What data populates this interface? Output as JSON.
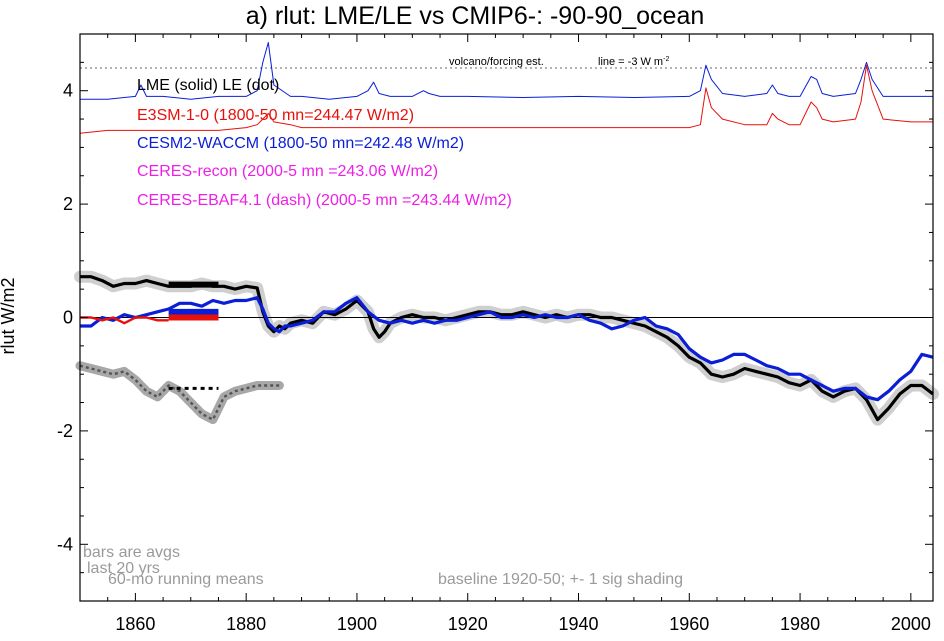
{
  "chart_data": {
    "type": "line",
    "title": "a) rlut: LME/LE vs CMIP6-: -90-90_ocean",
    "ylabel": "rlut W/m2",
    "xlabel": "",
    "xlim": [
      1850,
      2004
    ],
    "ylim": [
      -5,
      5
    ],
    "x_ticks": [
      1860,
      1880,
      1900,
      1920,
      1940,
      1960,
      1980,
      2000
    ],
    "x_tick_labels": [
      "1860",
      "1880",
      "1900",
      "1920",
      "1940",
      "1960",
      "1980",
      "2000"
    ],
    "y_ticks": [
      -4,
      -2,
      0,
      2,
      4
    ],
    "y_tick_labels": [
      "-4",
      "-2",
      "0",
      "2",
      "4"
    ],
    "legend": [
      {
        "text": "LME (solid)   LE (dot)",
        "color": "#000000"
      },
      {
        "text": "E3SM-1-0 (1800-50 mn=244.47 W/m2)",
        "color": "#e8100a"
      },
      {
        "text": "CESM2-WACCM (1800-50 mn=242.48 W/m2)",
        "color": "#0a1ed8"
      },
      {
        "text": "CERES-recon (2000-5 mn =243.06 W/m2)",
        "color": "#ee1fe6"
      },
      {
        "text": "CERES-EBAF4.1 (dash) (2000-5 mn =243.44 W/m2)",
        "color": "#ee1fe6"
      }
    ],
    "annotations": {
      "volcano": "volcano/forcing est.",
      "line": "line = -3 W m",
      "line_sup": "-2",
      "bars1": "bars are avgs",
      "bars2": "last 20 yrs",
      "running": "60-mo running means",
      "baseline": "baseline 1920-50; +- 1 sig shading"
    },
    "reference_lines": [
      {
        "name": "zero",
        "y": 0,
        "style": "solid"
      },
      {
        "name": "volcano-threshold",
        "y": 4.4,
        "style": "dotted"
      }
    ],
    "colors": {
      "lme": "#000000",
      "le": "#555555",
      "e3sm": "#e8100a",
      "cesm": "#0a1ed8",
      "shading": "#cfcfcf",
      "le_shading": "#a8a8a8",
      "axis": "#000000",
      "annotation_gray": "#9a9a9a"
    },
    "series": [
      {
        "name": "LME (solid)",
        "color": "#000000",
        "x": [
          1850,
          1852,
          1854,
          1856,
          1858,
          1860,
          1862,
          1864,
          1866,
          1868,
          1870,
          1872,
          1874,
          1876,
          1878,
          1880,
          1882,
          1883,
          1884,
          1885,
          1886,
          1887,
          1888,
          1890,
          1892,
          1894,
          1896,
          1898,
          1900,
          1902,
          1903,
          1904,
          1905,
          1906,
          1908,
          1910,
          1912,
          1914,
          1916,
          1918,
          1920,
          1922,
          1924,
          1926,
          1928,
          1930,
          1932,
          1934,
          1936,
          1938,
          1940,
          1942,
          1944,
          1946,
          1948,
          1950,
          1952,
          1954,
          1956,
          1958,
          1960,
          1962,
          1964,
          1966,
          1968,
          1970,
          1972,
          1974,
          1976,
          1978,
          1980,
          1982,
          1984,
          1986,
          1988,
          1990,
          1992,
          1994,
          1996,
          1998,
          2000,
          2002,
          2004
        ],
        "y": [
          0.72,
          0.72,
          0.65,
          0.55,
          0.6,
          0.6,
          0.65,
          0.6,
          0.55,
          0.55,
          0.55,
          0.6,
          0.55,
          0.55,
          0.5,
          0.55,
          0.52,
          0.1,
          -0.15,
          -0.25,
          -0.15,
          -0.2,
          -0.1,
          -0.05,
          -0.1,
          0.1,
          0.05,
          0.15,
          0.3,
          0.1,
          -0.2,
          -0.35,
          -0.25,
          -0.1,
          0.0,
          0.05,
          0.0,
          0.0,
          -0.05,
          0.0,
          0.05,
          0.1,
          0.1,
          0.05,
          0.05,
          0.1,
          0.05,
          0.0,
          0.05,
          0.0,
          0.05,
          0.05,
          0.0,
          0.0,
          -0.05,
          -0.1,
          -0.15,
          -0.25,
          -0.35,
          -0.5,
          -0.7,
          -0.8,
          -1.0,
          -1.05,
          -1.0,
          -0.9,
          -0.95,
          -1.0,
          -1.05,
          -1.15,
          -1.2,
          -1.1,
          -1.3,
          -1.4,
          -1.3,
          -1.25,
          -1.45,
          -1.8,
          -1.6,
          -1.35,
          -1.2,
          -1.2,
          -1.35
        ]
      },
      {
        "name": "CESM2-WACCM",
        "color": "#0a1ed8",
        "x": [
          1850,
          1852,
          1854,
          1856,
          1858,
          1860,
          1862,
          1864,
          1866,
          1868,
          1870,
          1872,
          1874,
          1876,
          1878,
          1880,
          1882,
          1883,
          1884,
          1885,
          1886,
          1887,
          1888,
          1890,
          1892,
          1894,
          1896,
          1898,
          1900,
          1902,
          1904,
          1906,
          1908,
          1910,
          1912,
          1914,
          1916,
          1918,
          1920,
          1922,
          1924,
          1926,
          1928,
          1930,
          1932,
          1934,
          1936,
          1938,
          1940,
          1942,
          1944,
          1946,
          1948,
          1950,
          1952,
          1954,
          1956,
          1958,
          1960,
          1962,
          1964,
          1966,
          1968,
          1970,
          1972,
          1974,
          1976,
          1978,
          1980,
          1982,
          1984,
          1986,
          1988,
          1990,
          1992,
          1994,
          1996,
          1998,
          2000,
          2002,
          2004
        ],
        "y": [
          -0.15,
          -0.15,
          0.0,
          -0.05,
          0.05,
          0.0,
          0.05,
          0.1,
          0.15,
          0.25,
          0.25,
          0.2,
          0.3,
          0.25,
          0.3,
          0.3,
          0.35,
          0.15,
          -0.1,
          -0.2,
          -0.25,
          -0.15,
          -0.15,
          -0.1,
          -0.05,
          0.1,
          0.1,
          0.25,
          0.35,
          0.1,
          -0.05,
          -0.1,
          -0.05,
          -0.1,
          -0.05,
          -0.1,
          -0.05,
          -0.05,
          0.0,
          0.05,
          0.1,
          0.0,
          0.0,
          0.05,
          0.0,
          0.05,
          0.0,
          0.0,
          0.05,
          -0.05,
          -0.1,
          -0.2,
          -0.15,
          -0.05,
          0.0,
          -0.15,
          -0.2,
          -0.3,
          -0.55,
          -0.7,
          -0.8,
          -0.75,
          -0.65,
          -0.65,
          -0.75,
          -0.85,
          -0.9,
          -1.0,
          -1.0,
          -1.1,
          -1.2,
          -1.3,
          -1.25,
          -1.25,
          -1.4,
          -1.45,
          -1.3,
          -1.1,
          -0.95,
          -0.65,
          -0.7
        ]
      },
      {
        "name": "E3SM-1-0",
        "color": "#e8100a",
        "x": [
          1850,
          1852,
          1854,
          1856,
          1858,
          1860,
          1862,
          1864,
          1866
        ],
        "y": [
          0.0,
          0.0,
          -0.05,
          0.0,
          -0.1,
          0.0,
          0.0,
          -0.05,
          -0.05
        ]
      },
      {
        "name": "LE (dot)",
        "color": "#555555",
        "x": [
          1850,
          1852,
          1854,
          1856,
          1858,
          1860,
          1862,
          1864,
          1866,
          1868,
          1870,
          1872,
          1874,
          1876,
          1878,
          1880,
          1882,
          1884,
          1886
        ],
        "y": [
          -0.85,
          -0.9,
          -0.95,
          -1.0,
          -0.95,
          -1.1,
          -1.3,
          -1.4,
          -1.2,
          -1.3,
          -1.5,
          -1.7,
          -1.8,
          -1.4,
          -1.3,
          -1.25,
          -1.2,
          -1.2,
          -1.2
        ]
      },
      {
        "name": "LME volcano/forcing est.",
        "color": "#0a1ed8",
        "x": [
          1850,
          1855,
          1860,
          1861,
          1862,
          1865,
          1870,
          1875,
          1880,
          1882,
          1883,
          1884,
          1885,
          1888,
          1890,
          1895,
          1900,
          1902,
          1903,
          1904,
          1906,
          1910,
          1912,
          1913,
          1915,
          1920,
          1930,
          1940,
          1950,
          1960,
          1962,
          1963,
          1964,
          1966,
          1970,
          1974,
          1975,
          1976,
          1978,
          1980,
          1982,
          1983,
          1984,
          1986,
          1990,
          1991,
          1992,
          1993,
          1995,
          2000,
          2004
        ],
        "y": [
          3.85,
          3.85,
          3.9,
          4.1,
          3.9,
          3.9,
          3.85,
          3.9,
          3.9,
          4.0,
          4.5,
          4.85,
          4.1,
          3.9,
          3.9,
          3.85,
          3.9,
          4.0,
          4.15,
          3.95,
          3.9,
          3.9,
          4.0,
          3.95,
          3.9,
          3.9,
          3.88,
          3.9,
          3.88,
          3.9,
          4.0,
          4.45,
          4.2,
          3.95,
          3.9,
          3.95,
          4.1,
          3.95,
          3.9,
          3.9,
          4.25,
          4.2,
          3.95,
          3.9,
          3.95,
          4.2,
          4.5,
          4.2,
          3.9,
          3.9,
          3.9
        ]
      },
      {
        "name": "CMIP6 volcano/forcing est.",
        "color": "#e8100a",
        "x": [
          1850,
          1855,
          1860,
          1865,
          1870,
          1875,
          1880,
          1882,
          1883,
          1884,
          1885,
          1888,
          1890,
          1895,
          1900,
          1910,
          1920,
          1930,
          1940,
          1950,
          1960,
          1962,
          1963,
          1964,
          1966,
          1970,
          1974,
          1975,
          1976,
          1978,
          1980,
          1982,
          1983,
          1984,
          1986,
          1990,
          1991,
          1992,
          1993,
          1995,
          2000,
          2004
        ],
        "y": [
          3.25,
          3.3,
          3.3,
          3.3,
          3.3,
          3.3,
          3.35,
          3.4,
          3.5,
          3.6,
          3.45,
          3.4,
          3.35,
          3.35,
          3.35,
          3.35,
          3.35,
          3.35,
          3.35,
          3.35,
          3.35,
          3.4,
          4.05,
          3.7,
          3.5,
          3.4,
          3.4,
          3.6,
          3.5,
          3.4,
          3.4,
          3.8,
          3.7,
          3.5,
          3.45,
          3.5,
          3.8,
          4.45,
          4.0,
          3.5,
          3.45,
          3.45
        ]
      }
    ],
    "bars": [
      {
        "name": "LME last 20 yrs avg",
        "color": "#000000",
        "x": [
          1866,
          1875
        ],
        "y": 0.58
      },
      {
        "name": "CESM2 last 20 yrs avg",
        "color": "#0a1ed8",
        "x": [
          1866,
          1875
        ],
        "y": 0.1
      },
      {
        "name": "E3SM last 20 yrs avg",
        "color": "#e8100a",
        "x": [
          1866,
          1875
        ],
        "y": 0.0
      },
      {
        "name": "LE last 20 yrs avg",
        "color": "#000000",
        "x": [
          1866,
          1875
        ],
        "y": -1.25
      }
    ]
  }
}
